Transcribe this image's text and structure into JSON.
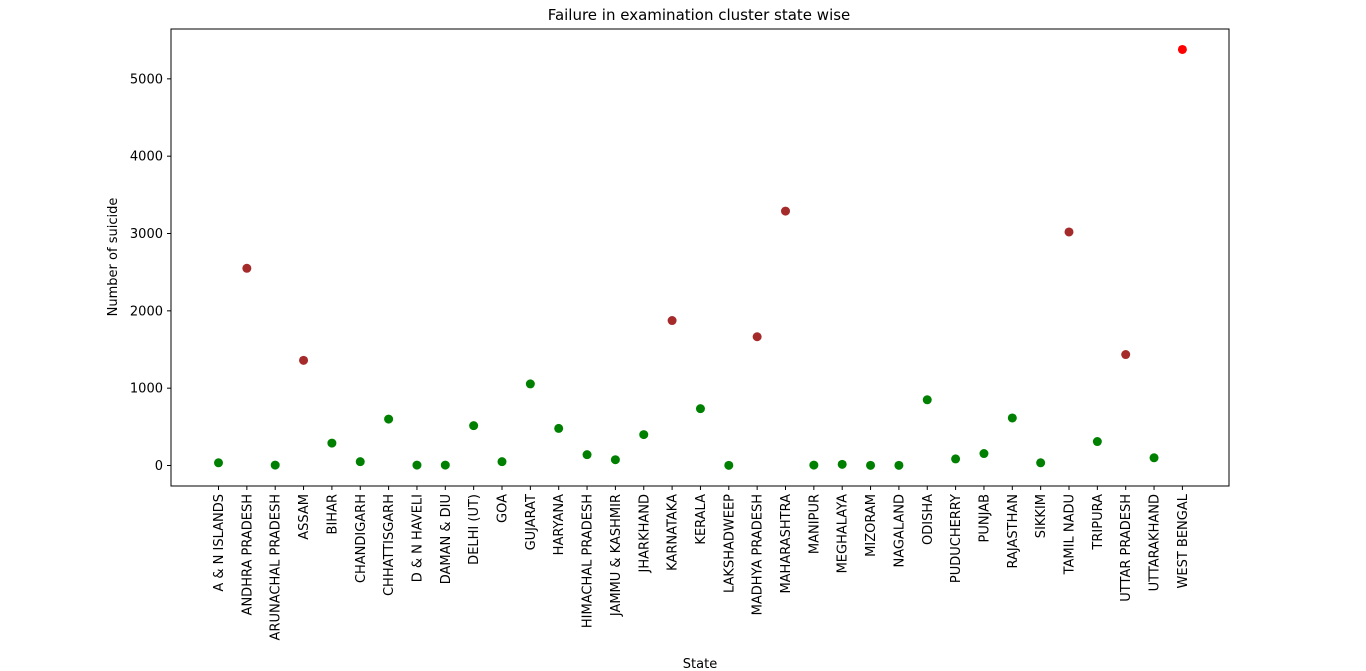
{
  "chart_data": {
    "type": "scatter",
    "title": "Failure in examination cluster state wise",
    "xlabel": "State",
    "ylabel": "Number of suicide",
    "ylim": [
      -270,
      5650
    ],
    "yticks": [
      0,
      1000,
      2000,
      3000,
      4000,
      5000
    ],
    "grid": false,
    "categories": [
      "A & N ISLANDS",
      "ANDHRA PRADESH",
      "ARUNACHAL PRADESH",
      "ASSAM",
      "BIHAR",
      "CHANDIGARH",
      "CHHATTISGARH",
      "D & N HAVELI",
      "DAMAN & DIU",
      "DELHI (UT)",
      "GOA",
      "GUJARAT",
      "HARYANA",
      "HIMACHAL PRADESH",
      "JAMMU & KASHMIR",
      "JHARKHAND",
      "KARNATAKA",
      "KERALA",
      "LAKSHADWEEP",
      "MADHYA PRADESH",
      "MAHARASHTRA",
      "MANIPUR",
      "MEGHALAYA",
      "MIZORAM",
      "NAGALAND",
      "ODISHA",
      "PUDUCHERRY",
      "PUNJAB",
      "RAJASTHAN",
      "SIKKIM",
      "TAMIL NADU",
      "TRIPURA",
      "UTTAR PRADESH",
      "UTTARAKHAND",
      "WEST BENGAL"
    ],
    "values": [
      35,
      2550,
      5,
      1360,
      290,
      50,
      600,
      5,
      5,
      515,
      50,
      1055,
      480,
      140,
      75,
      400,
      1875,
      735,
      2,
      1665,
      3290,
      5,
      15,
      2,
      2,
      850,
      85,
      155,
      615,
      35,
      3020,
      310,
      1435,
      100,
      5380
    ],
    "cluster": [
      0,
      1,
      0,
      1,
      0,
      0,
      0,
      0,
      0,
      0,
      0,
      0,
      0,
      0,
      0,
      0,
      1,
      0,
      0,
      1,
      1,
      0,
      0,
      0,
      0,
      0,
      0,
      0,
      0,
      0,
      1,
      0,
      1,
      0,
      2
    ],
    "cluster_colors": [
      "#008000",
      "#a52a2a",
      "#ff0000"
    ]
  }
}
